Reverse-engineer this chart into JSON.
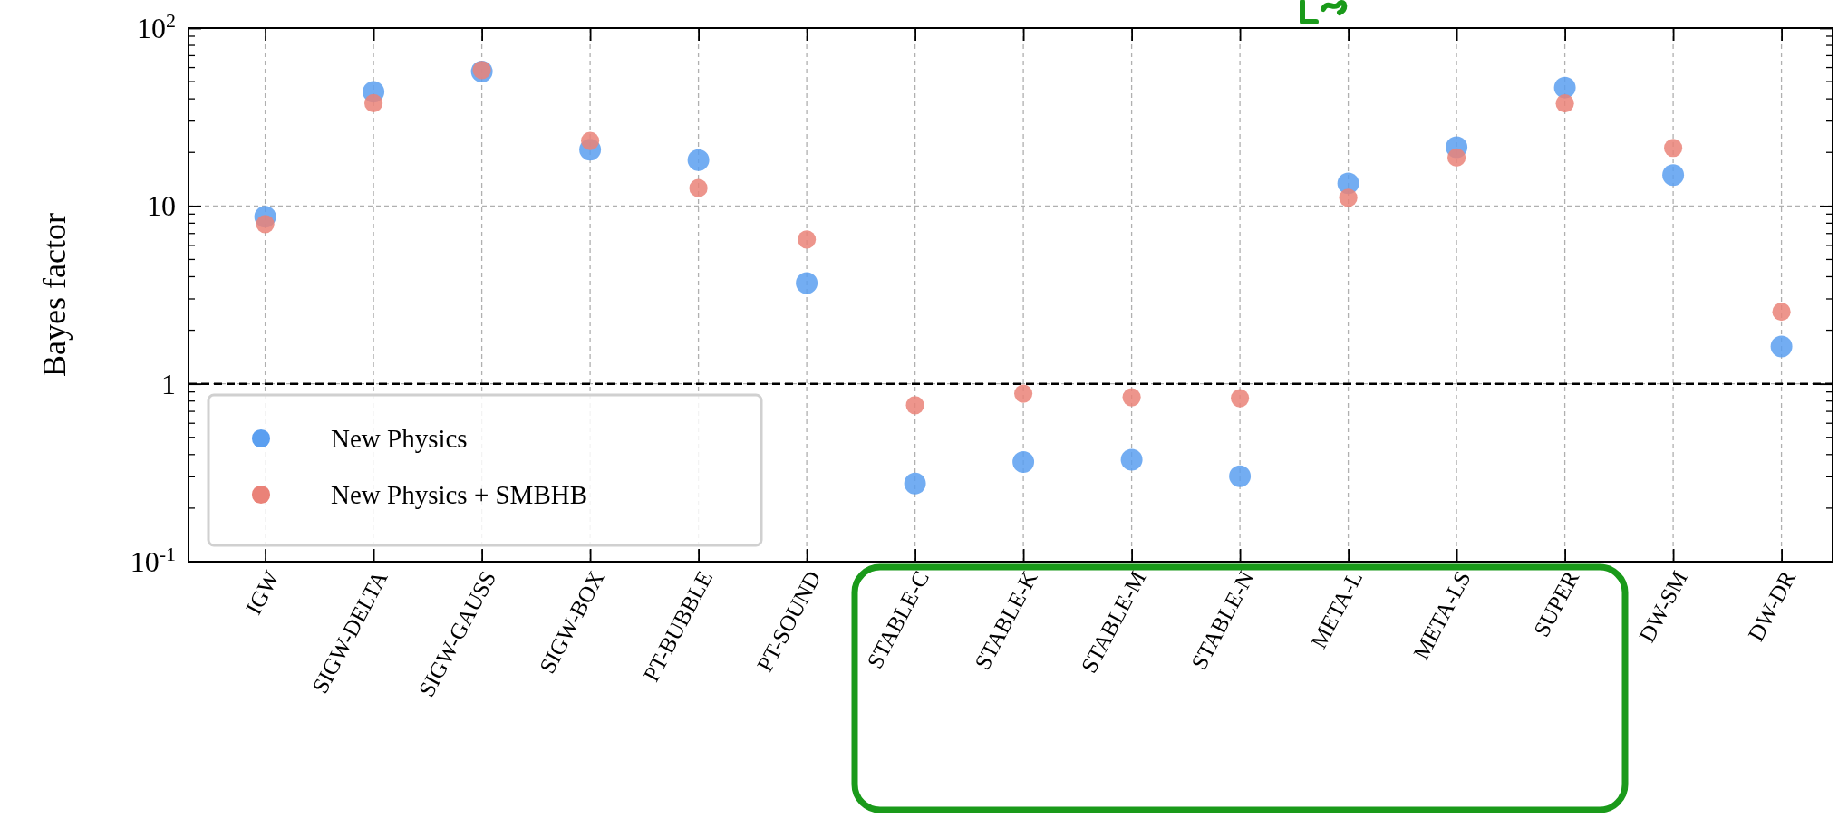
{
  "chart_data": {
    "type": "scatter",
    "ylabel": "Bayes factor",
    "categories": [
      "IGW",
      "SIGW-DELTA",
      "SIGW-GAUSS",
      "SIGW-BOX",
      "PT-BUBBLE",
      "PT-SOUND",
      "STABLE-C",
      "STABLE-K",
      "STABLE-M",
      "STABLE-N",
      "META-L",
      "META-LS",
      "SUPER",
      "DW-SM",
      "DW-DR"
    ],
    "series": [
      {
        "name": "New Physics",
        "color": "#5b9ff0",
        "values": [
          8.7,
          43.8,
          57,
          20.7,
          18.1,
          3.68,
          0.275,
          0.363,
          0.374,
          0.302,
          13.4,
          21.4,
          46.3,
          14.9,
          1.62
        ]
      },
      {
        "name": "New Physics + SMBHB",
        "color": "#ea8278",
        "values": [
          7.9,
          37.8,
          58,
          23.2,
          12.6,
          6.47,
          0.757,
          0.88,
          0.84,
          0.83,
          11.1,
          18.7,
          37.7,
          21.2,
          2.54
        ]
      }
    ],
    "log": true,
    "ylim": [
      0.1,
      100
    ],
    "yticks": [
      {
        "value": 0.1,
        "label": "10$^{-1}$"
      },
      1,
      10,
      {
        "value": 100,
        "label": "10$^{2}$"
      }
    ],
    "ref_lines": [
      {
        "axis": "y",
        "value": 1,
        "color": "#000000",
        "line_style": "dashed"
      }
    ],
    "grid": true,
    "legend": "bottom left",
    "marker": "circle"
  }
}
